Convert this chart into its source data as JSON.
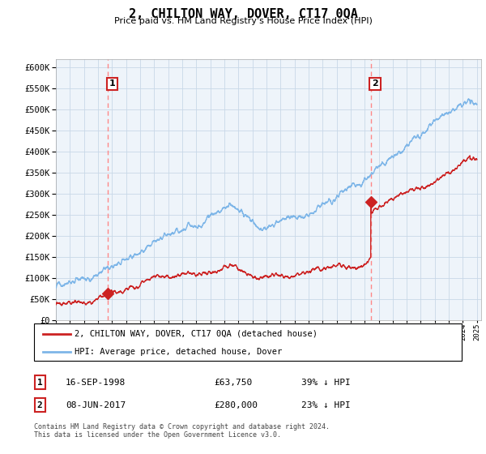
{
  "title": "2, CHILTON WAY, DOVER, CT17 0QA",
  "subtitle": "Price paid vs. HM Land Registry's House Price Index (HPI)",
  "ylim": [
    0,
    620000
  ],
  "yticks": [
    0,
    50000,
    100000,
    150000,
    200000,
    250000,
    300000,
    350000,
    400000,
    450000,
    500000,
    550000,
    600000
  ],
  "sale1_date": 1998.72,
  "sale1_price": 63750,
  "sale2_date": 2017.44,
  "sale2_price": 280000,
  "sale1_label": "1",
  "sale2_label": "2",
  "legend_property": "2, CHILTON WAY, DOVER, CT17 0QA (detached house)",
  "legend_hpi": "HPI: Average price, detached house, Dover",
  "table_row1": [
    "1",
    "16-SEP-1998",
    "£63,750",
    "39% ↓ HPI"
  ],
  "table_row2": [
    "2",
    "08-JUN-2017",
    "£280,000",
    "23% ↓ HPI"
  ],
  "footnote": "Contains HM Land Registry data © Crown copyright and database right 2024.\nThis data is licensed under the Open Government Licence v3.0.",
  "hpi_color": "#7EB6E8",
  "property_color": "#CC2222",
  "vline_color": "#FF8888",
  "grid_color": "#C8D8E8",
  "bg_color": "#E8F0F8",
  "plot_bg": "#EEF4FA"
}
